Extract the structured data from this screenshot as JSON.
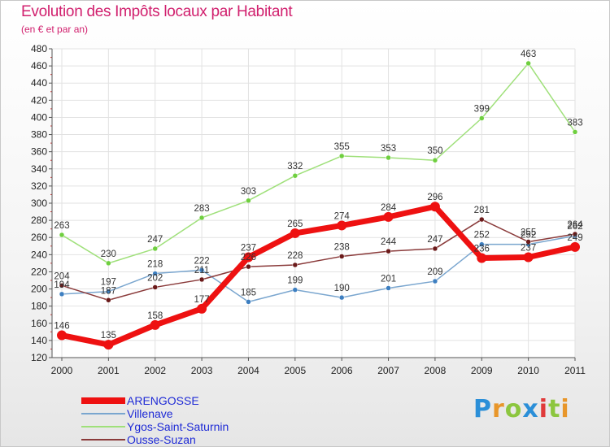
{
  "header": {
    "title": "Evolution des Impôts locaux par Habitant",
    "subtitle": "(en € et par an)"
  },
  "logo": {
    "text": "Proxiti",
    "letters": [
      {
        "ch": "P",
        "color": "#2b8fd8"
      },
      {
        "ch": "r",
        "color": "#e8962a"
      },
      {
        "ch": "o",
        "color": "#8cc63f"
      },
      {
        "ch": "x",
        "color": "#2b8fd8"
      },
      {
        "ch": "i",
        "color": "#e03a3a"
      },
      {
        "ch": "t",
        "color": "#8cc63f"
      },
      {
        "ch": "i",
        "color": "#e8962a"
      }
    ]
  },
  "chart_data": {
    "type": "line",
    "title": "Evolution des Impôts locaux par Habitant",
    "subtitle": "(en € et par an)",
    "xlabel": "",
    "ylabel": "",
    "categories": [
      "2000",
      "2001",
      "2002",
      "2003",
      "2004",
      "2005",
      "2006",
      "2007",
      "2008",
      "2009",
      "2010",
      "2011"
    ],
    "ylim": [
      120,
      480
    ],
    "yticks": [
      120,
      140,
      160,
      180,
      200,
      220,
      240,
      260,
      280,
      300,
      320,
      340,
      360,
      380,
      400,
      420,
      440,
      460,
      480
    ],
    "grid": true,
    "legend_position": "bottom-left",
    "series": [
      {
        "name": "ARENGOSSE",
        "color": "#ee1111",
        "marker": "#ee1111",
        "width": 7,
        "values": [
          146,
          135,
          158,
          177,
          237,
          265,
          274,
          284,
          296,
          236,
          237,
          249
        ],
        "labels": [
          "146",
          "135",
          "158",
          "177",
          "237",
          "265",
          "274",
          "284",
          "296",
          "236",
          "237",
          "249"
        ]
      },
      {
        "name": "Villenave",
        "color": "#7aa6cf",
        "marker": "#3d7fc1",
        "width": 1.5,
        "values": [
          194,
          197,
          218,
          222,
          185,
          199,
          190,
          201,
          209,
          252,
          252,
          262
        ],
        "labels": [
          "194",
          "197",
          "218",
          "222",
          "185",
          "199",
          "190",
          "201",
          "209",
          "252",
          "252",
          "262"
        ]
      },
      {
        "name": "Ygos-Saint-Saturnin",
        "color": "#9fe07a",
        "marker": "#6fcf3f",
        "width": 1.5,
        "values": [
          263,
          230,
          247,
          283,
          303,
          332,
          355,
          353,
          350,
          399,
          463,
          383
        ],
        "labels": [
          "263",
          "230",
          "247",
          "283",
          "303",
          "332",
          "355",
          "353",
          "350",
          "399",
          "463",
          "383"
        ]
      },
      {
        "name": "Ousse-Suzan",
        "color": "#8a3a3a",
        "marker": "#6b1a1a",
        "width": 1.5,
        "values": [
          204,
          187,
          202,
          211,
          226,
          228,
          238,
          244,
          247,
          281,
          255,
          264
        ],
        "labels": [
          "204",
          "187",
          "202",
          "211",
          "226",
          "228",
          "238",
          "244",
          "247",
          "281",
          "255",
          "264"
        ]
      }
    ]
  }
}
